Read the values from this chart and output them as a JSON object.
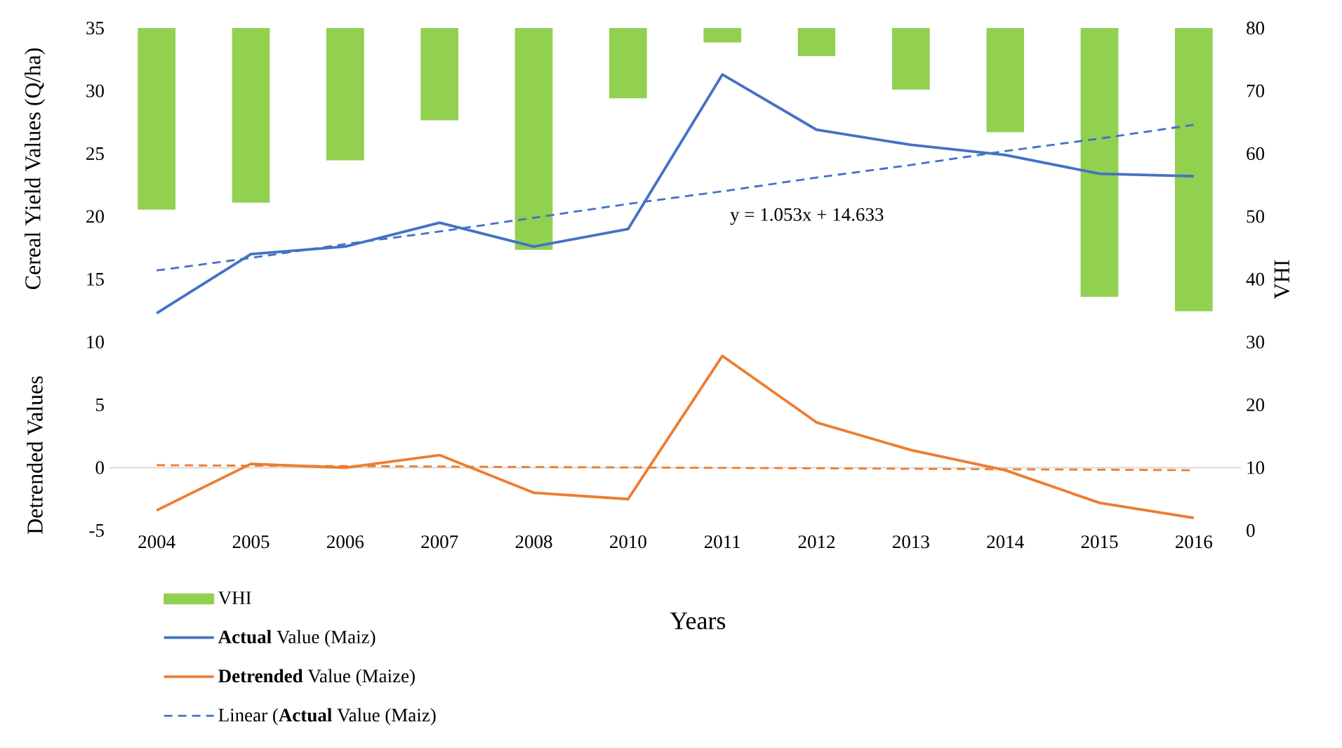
{
  "chart_data": {
    "type": "line",
    "xlabel": "Years",
    "ylabel": "Cereal Yield Values (Q/ha)",
    "y2label": "VHI",
    "categories": [
      "2004",
      "2005",
      "2006",
      "2007",
      "2008",
      "2010",
      "2011",
      "2012",
      "2013",
      "2014",
      "2015",
      "2016"
    ],
    "ylim": [
      -5,
      35
    ],
    "yticks": [
      -5,
      0,
      5,
      10,
      15,
      20,
      25,
      30,
      35
    ],
    "y2lim": [
      0,
      80
    ],
    "y2ticks": [
      0,
      10,
      20,
      30,
      40,
      50,
      60,
      70,
      80
    ],
    "series": [
      {
        "name": "VHI",
        "type": "bar",
        "axis": "y2",
        "color": "#92d050",
        "base": [
          80,
          80,
          80,
          80,
          80,
          80,
          80,
          80,
          80,
          80,
          80,
          80
        ],
        "values": [
          -28.9,
          -27.8,
          -21.1,
          -14.7,
          -35.3,
          -11.2,
          -2.3,
          -4.5,
          -9.8,
          -16.6,
          -42.8,
          -45.1
        ]
      },
      {
        "name": "**Actual** Value (Maiz)",
        "color": "#4472c4",
        "values": [
          12.3,
          17.0,
          17.6,
          19.5,
          17.6,
          19.0,
          31.3,
          26.9,
          25.7,
          24.9,
          23.4,
          23.2
        ]
      },
      {
        "name": "**Detrended** Value (Maize)",
        "color": "#ed7d31",
        "values": [
          -3.4,
          0.3,
          0.0,
          1.0,
          -2.0,
          -2.5,
          8.9,
          3.6,
          1.4,
          -0.2,
          -2.8,
          -4.0
        ]
      },
      {
        "name": "Linear (**Actual** Value (Maiz)",
        "color": "#4472c4",
        "line_style": "dashed",
        "values": [
          15.7,
          16.7,
          17.8,
          18.8,
          19.9,
          21.0,
          22.0,
          23.1,
          24.1,
          25.2,
          26.2,
          27.3
        ]
      },
      {
        "color": "#ed7d31",
        "line_style": "dashed",
        "values": [
          0.2,
          0.16,
          0.13,
          0.09,
          0.05,
          0.02,
          -0.02,
          -0.05,
          -0.09,
          -0.13,
          -0.16,
          -0.2
        ]
      }
    ],
    "ref_lines": [
      {
        "axis": "y",
        "value": 0,
        "color": "#d9d9d9"
      }
    ],
    "legend": "bottom left",
    "annotations": [
      "y = 1.053x + 14.633",
      "Detrended Values"
    ]
  }
}
